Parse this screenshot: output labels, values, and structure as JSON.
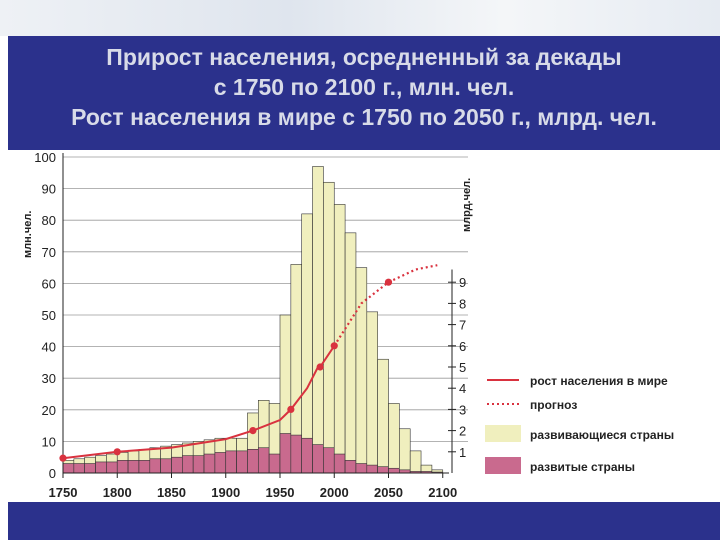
{
  "slide": {
    "title_lines": [
      "Прирост населения, осредненный за декады",
      "с 1750 по 2100 г., млн. чел.",
      "Рост населения в мире с 1750 по 2050 г., млрд. чел."
    ]
  },
  "colors": {
    "background": "#2b318c",
    "developing": "#f0efbe",
    "developed": "#c96a8e",
    "world_line": "#d9323f",
    "bar_edge": "#333333"
  },
  "chart_data": {
    "type": "bar",
    "stacked": true,
    "x_ticks": [
      1750,
      1800,
      1850,
      1900,
      1950,
      2000,
      2050,
      2100
    ],
    "xlim": [
      1750,
      2110
    ],
    "left_axis": {
      "label": "млн.чел.",
      "ylim": [
        0,
        100
      ],
      "ticks": [
        0,
        10,
        20,
        30,
        40,
        50,
        60,
        70,
        80,
        90,
        100
      ]
    },
    "right_axis": {
      "label": "млрд.чел.",
      "ylim": [
        0,
        10
      ],
      "ticks": [
        1,
        2,
        3,
        4,
        5,
        6,
        7,
        8,
        9
      ]
    },
    "bar_width_years": 10,
    "bars": [
      {
        "x": 1750,
        "developed": 3,
        "total": 4
      },
      {
        "x": 1760,
        "developed": 3,
        "total": 4.5
      },
      {
        "x": 1770,
        "developed": 3,
        "total": 5
      },
      {
        "x": 1780,
        "developed": 3.5,
        "total": 5.5
      },
      {
        "x": 1790,
        "developed": 3.5,
        "total": 6
      },
      {
        "x": 1800,
        "developed": 4,
        "total": 6.5
      },
      {
        "x": 1810,
        "developed": 4,
        "total": 7
      },
      {
        "x": 1820,
        "developed": 4,
        "total": 7.5
      },
      {
        "x": 1830,
        "developed": 4.5,
        "total": 8
      },
      {
        "x": 1840,
        "developed": 4.5,
        "total": 8.5
      },
      {
        "x": 1850,
        "developed": 5,
        "total": 9
      },
      {
        "x": 1860,
        "developed": 5.5,
        "total": 9.5
      },
      {
        "x": 1870,
        "developed": 5.5,
        "total": 10
      },
      {
        "x": 1880,
        "developed": 6,
        "total": 10.5
      },
      {
        "x": 1890,
        "developed": 6.5,
        "total": 11
      },
      {
        "x": 1900,
        "developed": 7,
        "total": 11
      },
      {
        "x": 1910,
        "developed": 7,
        "total": 11
      },
      {
        "x": 1920,
        "developed": 7.5,
        "total": 19
      },
      {
        "x": 1930,
        "developed": 8,
        "total": 23
      },
      {
        "x": 1940,
        "developed": 6,
        "total": 22
      },
      {
        "x": 1950,
        "developed": 12.5,
        "total": 50
      },
      {
        "x": 1960,
        "developed": 12,
        "total": 66
      },
      {
        "x": 1970,
        "developed": 11,
        "total": 82
      },
      {
        "x": 1980,
        "developed": 9,
        "total": 97
      },
      {
        "x": 1990,
        "developed": 8,
        "total": 92
      },
      {
        "x": 2000,
        "developed": 6,
        "total": 85
      },
      {
        "x": 2010,
        "developed": 4,
        "total": 76
      },
      {
        "x": 2020,
        "developed": 3,
        "total": 65
      },
      {
        "x": 2030,
        "developed": 2.5,
        "total": 51
      },
      {
        "x": 2040,
        "developed": 2,
        "total": 36
      },
      {
        "x": 2050,
        "developed": 1.5,
        "total": 22
      },
      {
        "x": 2060,
        "developed": 1,
        "total": 14
      },
      {
        "x": 2070,
        "developed": 0.5,
        "total": 7
      },
      {
        "x": 2080,
        "developed": 0.5,
        "total": 2.5
      },
      {
        "x": 2090,
        "developed": 0.3,
        "total": 1
      }
    ],
    "series": [
      {
        "name": "рост населения в мире",
        "axis": "right",
        "style": "solid",
        "points": [
          [
            1750,
            0.7
          ],
          [
            1800,
            1.0
          ],
          [
            1850,
            1.2
          ],
          [
            1900,
            1.6
          ],
          [
            1925,
            2.0
          ],
          [
            1950,
            2.5
          ],
          [
            1960,
            3.0
          ],
          [
            1975,
            4.0
          ],
          [
            1985,
            5.0
          ],
          [
            1987,
            5.0
          ],
          [
            2000,
            6.0
          ]
        ]
      },
      {
        "name": "прогноз",
        "axis": "right",
        "style": "dotted",
        "points": [
          [
            2000,
            6.0
          ],
          [
            2025,
            8.0
          ],
          [
            2050,
            9.0
          ],
          [
            2075,
            9.6
          ],
          [
            2095,
            9.8
          ]
        ]
      }
    ],
    "marked_points": [
      [
        1750,
        0.7
      ],
      [
        1800,
        1.0
      ],
      [
        1925,
        2.0
      ],
      [
        1960,
        3.0
      ],
      [
        1987,
        5.0
      ],
      [
        2000,
        6.0
      ],
      [
        2050,
        9.0
      ]
    ],
    "legend": {
      "placement": "right",
      "items": [
        {
          "label": "рост населения в мире",
          "kind": "line-solid"
        },
        {
          "label": "прогноз",
          "kind": "line-dotted"
        },
        {
          "label": "развивающиеся страны",
          "kind": "fill-developing"
        },
        {
          "label": "развитые страны",
          "kind": "fill-developed"
        }
      ]
    },
    "grid": true
  }
}
